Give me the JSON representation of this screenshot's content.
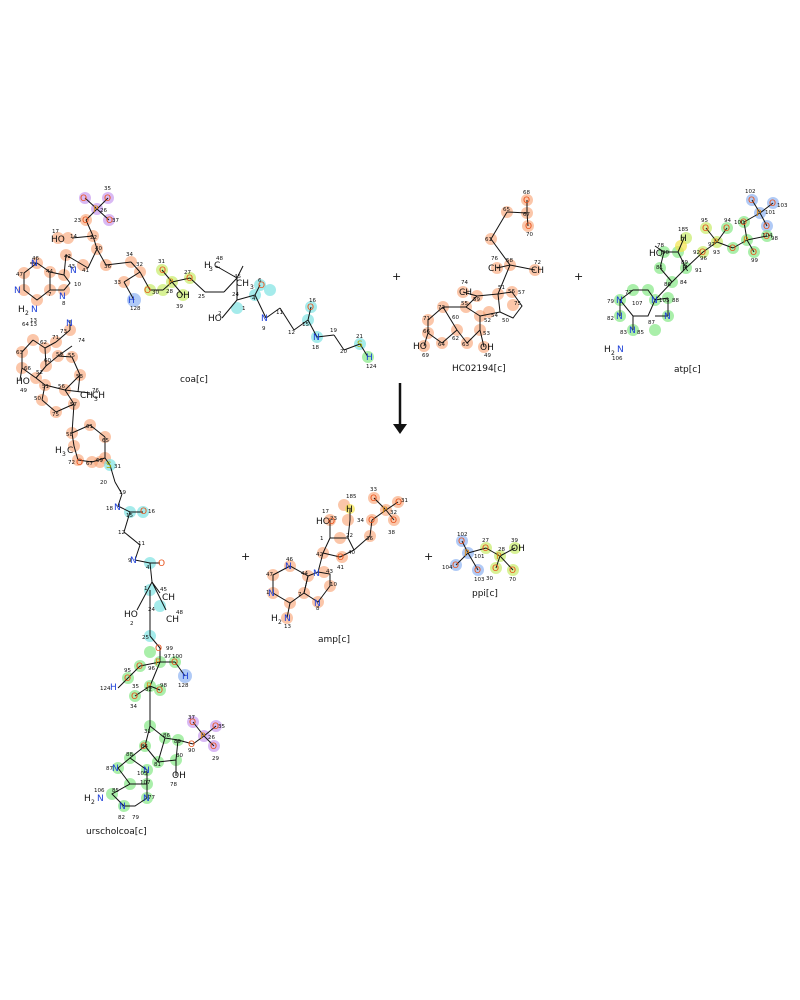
{
  "colors": {
    "orange": "#f8a070",
    "yellow": "#f4e24c",
    "cyan": "#7fe3e3",
    "green": "#86e886",
    "blue": "#8fb4f2",
    "purple": "#c99bf0",
    "lime": "#c8ec6a",
    "atom_O": "#e8531c",
    "atom_N": "#1c3fd8",
    "atom_P": "#d98a1a",
    "atom_S": "#a8a800",
    "atom_C": "#111111"
  },
  "reaction": {
    "plus_1": "+",
    "plus_2": "+",
    "plus_3": "+",
    "plus_4": "+",
    "arrow_icon": "down-arrow-icon"
  },
  "molecules": {
    "coa": {
      "label": "coa[c]"
    },
    "hc02194": {
      "label": "HC02194[c]"
    },
    "atp": {
      "label": "atp[c]"
    },
    "urscholcoa": {
      "label": "urscholcoa[c]"
    },
    "amp": {
      "label": "amp[c]"
    },
    "ppi": {
      "label": "ppi[c]"
    }
  }
}
